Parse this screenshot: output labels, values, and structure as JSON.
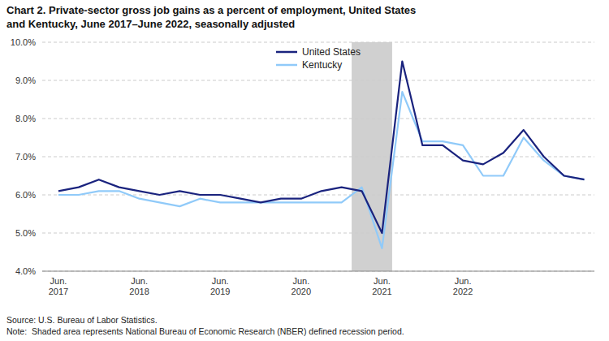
{
  "chart_data": {
    "type": "line",
    "title": "Chart 2. Private-sector gross job gains as a percent of employment, United States\nand Kentucky, June 2017–June 2022, seasonally adjusted",
    "source_note": "Source: U.S. Bureau of Labor Statistics.\nNote:  Shaded area represents National Bureau of Economic Research (NBER) defined recession period.",
    "categories": [
      "Jun.\n2017",
      null,
      null,
      null,
      "Jun.\n2018",
      null,
      null,
      null,
      "Jun.\n2019",
      null,
      null,
      null,
      "Jun.\n2020",
      null,
      null,
      null,
      "Jun.\n2021",
      null,
      null,
      null,
      "Jun.\n2022",
      null,
      null,
      null,
      null,
      null,
      null
    ],
    "series": [
      {
        "name": "United States",
        "color": "#1a237e",
        "values": [
          6.1,
          6.2,
          6.4,
          6.2,
          6.1,
          6.0,
          6.1,
          6.0,
          6.0,
          5.9,
          5.8,
          5.9,
          5.9,
          6.1,
          6.2,
          6.1,
          5.0,
          9.5,
          7.3,
          7.3,
          6.9,
          6.8,
          7.1,
          7.7,
          7.0,
          6.5,
          6.4
        ]
      },
      {
        "name": "Kentucky",
        "color": "#90caf9",
        "values": [
          6.0,
          6.0,
          6.1,
          6.1,
          5.9,
          5.8,
          5.7,
          5.9,
          5.8,
          5.8,
          5.8,
          5.8,
          5.8,
          5.8,
          5.8,
          6.2,
          4.6,
          8.7,
          7.4,
          7.4,
          7.3,
          6.5,
          6.5,
          7.5,
          6.9,
          6.5,
          6.4
        ]
      }
    ],
    "ylim": [
      4.0,
      10.0
    ],
    "yticks": [
      {
        "value": 4.0,
        "label": "4.0%"
      },
      {
        "value": 5.0,
        "label": "5.0%"
      },
      {
        "value": 6.0,
        "label": "6.0%"
      },
      {
        "value": 7.0,
        "label": "7.0%"
      },
      {
        "value": 8.0,
        "label": "8.0%"
      },
      {
        "value": 9.0,
        "label": "9.0%"
      },
      {
        "value": 10.0,
        "label": "10.0%"
      }
    ],
    "recession": {
      "start": 14.5,
      "end": 16.5,
      "color": "#d0d0d0"
    },
    "grid": true,
    "legend": "upper center"
  }
}
